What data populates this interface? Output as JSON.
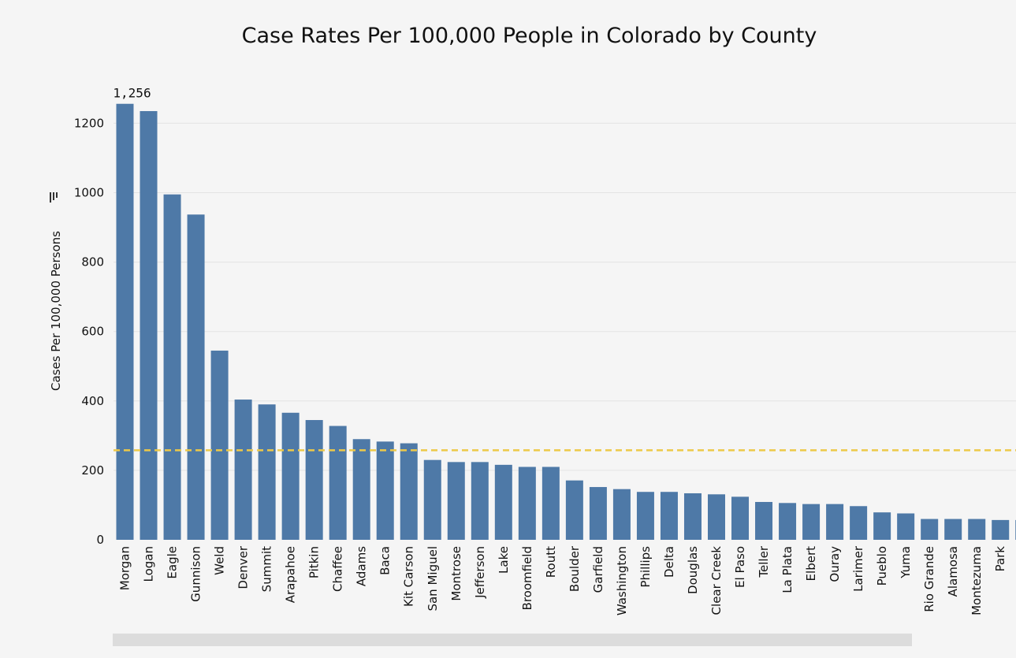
{
  "chart_data": {
    "type": "bar",
    "title": "Case Rates Per 100,000 People in Colorado by County",
    "xlabel": "",
    "ylabel": "Cases Per 100,000 Persons",
    "ylim": [
      0,
      1300
    ],
    "yticks": [
      0,
      200,
      400,
      600,
      800,
      1000,
      1200
    ],
    "ytick_labels": [
      "0",
      "200",
      "400",
      "600",
      "800",
      "1000",
      "1200"
    ],
    "grid": true,
    "reference_line": 258,
    "data_label": {
      "index": 0,
      "text": "1,256"
    },
    "categories": [
      "Morgan",
      "Logan",
      "Eagle",
      "Gunnison",
      "Weld",
      "Denver",
      "Summit",
      "Arapahoe",
      "Pitkin",
      "Chaffee",
      "Adams",
      "Baca",
      "Kit Carson",
      "San Miguel",
      "Montrose",
      "Jefferson",
      "Lake",
      "Broomfield",
      "Routt",
      "Boulder",
      "Garfield",
      "Washington",
      "Phillips",
      "Delta",
      "Douglas",
      "Clear Creek",
      "El Paso",
      "Teller",
      "La Plata",
      "Elbert",
      "Ouray",
      "Larimer",
      "Pueblo",
      "Yuma",
      "Rio Grande",
      "Alamosa",
      "Montezuma",
      "Park"
    ],
    "values": [
      1256,
      1235,
      995,
      937,
      545,
      404,
      390,
      366,
      345,
      328,
      290,
      283,
      278,
      230,
      224,
      224,
      216,
      210,
      210,
      171,
      152,
      146,
      138,
      138,
      134,
      131,
      124,
      109,
      106,
      103,
      103,
      97,
      79,
      76,
      60,
      60,
      60,
      57
    ]
  },
  "colors": {
    "bar": "#4e79a7",
    "reference_line": "#edc948",
    "grid": "#e4e4e4",
    "background": "#f5f5f5",
    "scrollbar_thumb": "#dcdcdc"
  },
  "icons": {
    "axis_sort": "sort-icon"
  }
}
